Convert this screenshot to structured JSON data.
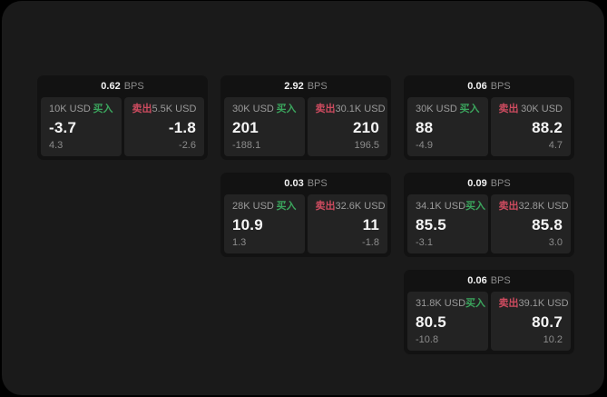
{
  "labels": {
    "bps_unit": "BPS",
    "buy": "买入",
    "sell": "卖出"
  },
  "colors": {
    "page_bg": "#1a1a1a",
    "card_bg": "#121212",
    "panel_bg": "#232323",
    "buy_green": "#3ba55d",
    "sell_red": "#cd4b5f",
    "text_primary": "#f2f2f2",
    "text_muted": "#8c8c8c"
  },
  "cards": [
    {
      "bps": "0.62",
      "buy": {
        "amount": "10K USD",
        "value": "-3.7",
        "change": "4.3"
      },
      "sell": {
        "amount": "5.5K USD",
        "value": "-1.8",
        "change": "-2.6"
      }
    },
    {
      "bps": "2.92",
      "buy": {
        "amount": "30K USD",
        "value": "201",
        "change": "-188.1"
      },
      "sell": {
        "amount": "30.1K USD",
        "value": "210",
        "change": "196.5"
      }
    },
    {
      "bps": "0.06",
      "buy": {
        "amount": "30K USD",
        "value": "88",
        "change": "-4.9"
      },
      "sell": {
        "amount": "30K USD",
        "value": "88.2",
        "change": "4.7"
      }
    },
    {
      "bps": "0.03",
      "buy": {
        "amount": "28K USD",
        "value": "10.9",
        "change": "1.3"
      },
      "sell": {
        "amount": "32.6K USD",
        "value": "11",
        "change": "-1.8"
      }
    },
    {
      "bps": "0.09",
      "buy": {
        "amount": "34.1K USD",
        "value": "85.5",
        "change": "-3.1"
      },
      "sell": {
        "amount": "32.8K USD",
        "value": "85.8",
        "change": "3.0"
      }
    },
    {
      "bps": "0.06",
      "buy": {
        "amount": "31.8K USD",
        "value": "80.5",
        "change": "-10.8"
      },
      "sell": {
        "amount": "39.1K USD",
        "value": "80.7",
        "change": "10.2"
      }
    }
  ]
}
